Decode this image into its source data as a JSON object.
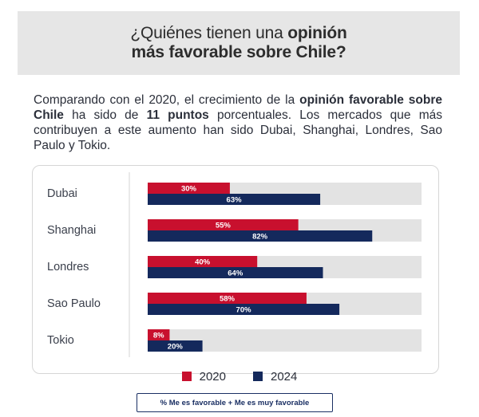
{
  "header": {
    "title_part1": "¿Quiénes tienen una ",
    "title_bold1": "opinión",
    "title_bold2": "más favorable sobre Chile?"
  },
  "intro": {
    "t1": "Comparando con el 2020, el crecimiento de la ",
    "b1": "opinión favorable sobre Chile",
    "t2": " ha sido de ",
    "b2": "11 puntos",
    "t3": " porcentuales. Los mercados que más contribuyen a este aumento han sido Dubai, Shanghai, Londres, Sao Paulo y Tokio."
  },
  "colors": {
    "series_2020": "#c8102e",
    "series_2024": "#14295c",
    "track": "#e3e3e3"
  },
  "chart_data": {
    "type": "bar",
    "orientation": "horizontal",
    "categories": [
      "Dubai",
      "Shanghai",
      "Londres",
      "Sao Paulo",
      "Tokio"
    ],
    "series": [
      {
        "name": "2020",
        "values": [
          30,
          55,
          40,
          58,
          8
        ]
      },
      {
        "name": "2024",
        "values": [
          63,
          82,
          64,
          70,
          20
        ]
      }
    ],
    "value_suffix": "%",
    "xlim": [
      0,
      100
    ],
    "legend_position": "bottom"
  },
  "footnote": "% Me es favorable + Me es muy favorable"
}
